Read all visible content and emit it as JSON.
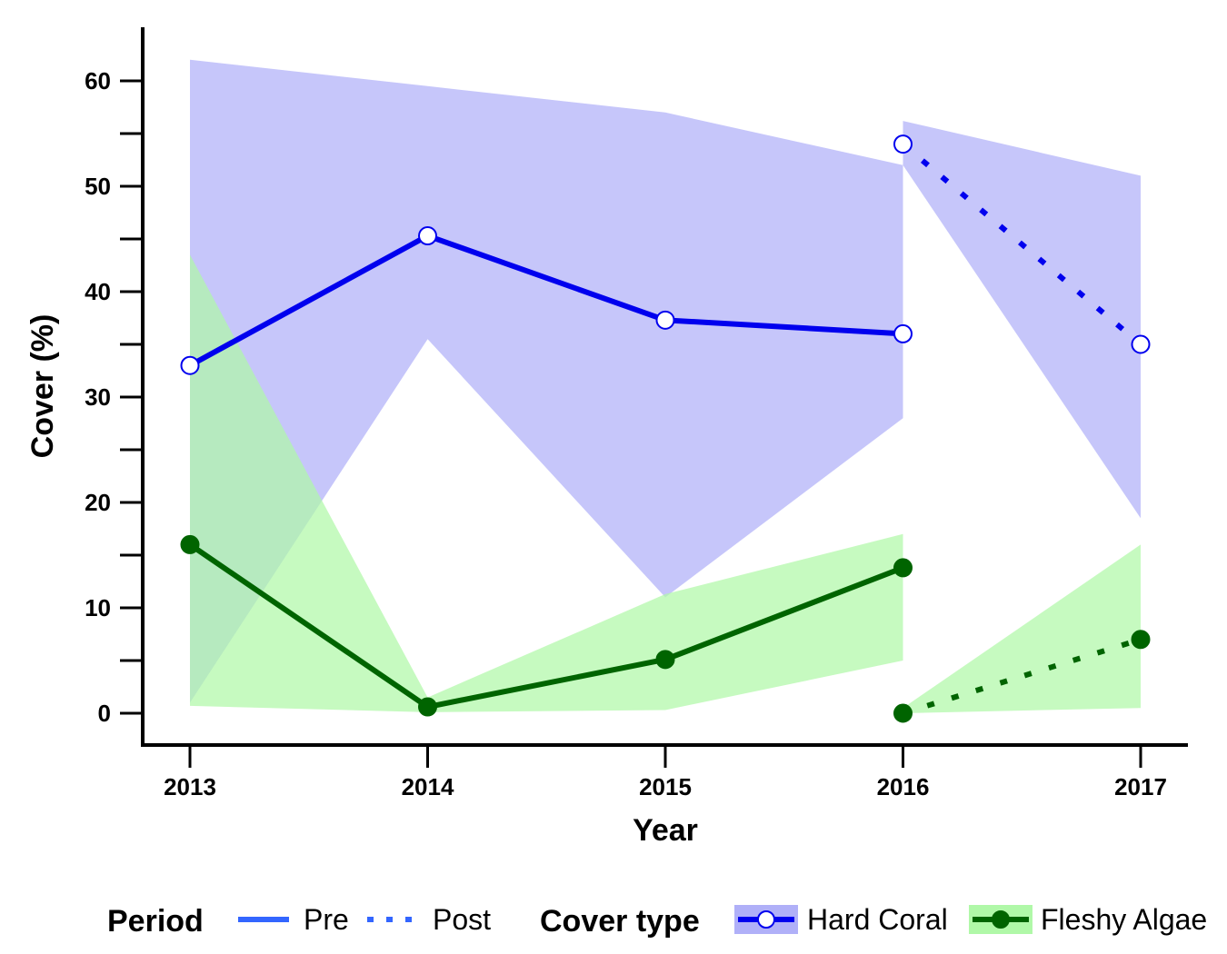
{
  "chart_data": {
    "type": "line",
    "xlabel": "Year",
    "ylabel": "Cover (%)",
    "x_ticks": [
      "2013",
      "2014",
      "2015",
      "2016",
      "2017"
    ],
    "y_ticks": [
      "0",
      "10",
      "20",
      "30",
      "40",
      "50",
      "60"
    ],
    "xlim": [
      2012.8,
      2017.2
    ],
    "ylim": [
      -2.5,
      65
    ],
    "grid": false,
    "legend_position": "bottom",
    "series": [
      {
        "name": "Hard Coral",
        "color": "#0000EE",
        "ribbon_color": "#B0B0F8",
        "marker": "open-circle",
        "segments": [
          {
            "period": "Pre",
            "line": "solid",
            "x": [
              2013,
              2014,
              2015,
              2016
            ],
            "y": [
              33,
              45.3,
              37.3,
              36
            ],
            "lower": [
              1,
              35.5,
              11,
              28
            ],
            "upper": [
              62,
              59.5,
              57,
              52
            ]
          },
          {
            "period": "Post",
            "line": "dotted",
            "x": [
              2016,
              2017
            ],
            "y": [
              54,
              35
            ],
            "lower": [
              52,
              18.5
            ],
            "upper": [
              56.2,
              51
            ]
          }
        ]
      },
      {
        "name": "Fleshy Algae",
        "color": "#006400",
        "ribbon_color": "#B0F8A8",
        "marker": "filled-circle",
        "segments": [
          {
            "period": "Pre",
            "line": "solid",
            "x": [
              2013,
              2014,
              2015,
              2016
            ],
            "y": [
              16,
              0.6,
              5.1,
              13.8
            ],
            "lower": [
              0.7,
              0.1,
              0.3,
              5
            ],
            "upper": [
              43.5,
              1.5,
              11.3,
              17
            ]
          },
          {
            "period": "Post",
            "line": "dotted",
            "x": [
              2016,
              2017
            ],
            "y": [
              0,
              7
            ],
            "lower": [
              0,
              0.5
            ],
            "upper": [
              0.5,
              16
            ]
          }
        ]
      }
    ],
    "legend": {
      "period_title": "Period",
      "period_items": [
        {
          "label": "Pre",
          "line": "solid"
        },
        {
          "label": "Post",
          "line": "dotted"
        }
      ],
      "cover_title": "Cover type",
      "cover_items": [
        "Hard Coral",
        "Fleshy Algae"
      ]
    }
  }
}
